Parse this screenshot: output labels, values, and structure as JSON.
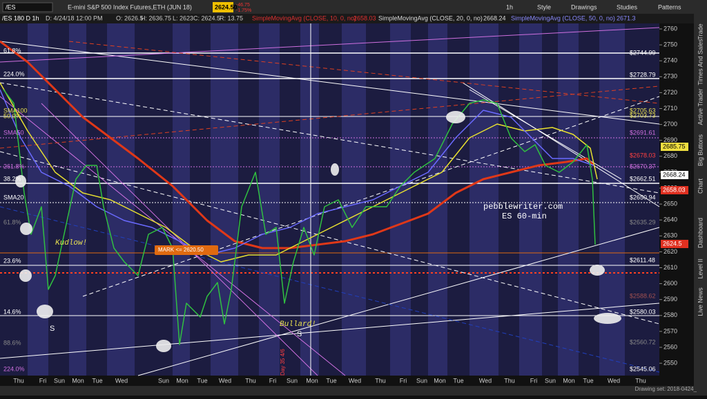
{
  "toolbar": {
    "symbol": "/ES",
    "description": "E-mini S&P 500 Index Futures,ETH (JUN 18)",
    "last": "2624.50",
    "change": "-46.75",
    "change_pct": "-1.75%",
    "buttons": [
      "1h",
      "Style",
      "Drawings",
      "Studies",
      "Patterns"
    ]
  },
  "info_bar": {
    "chart": "/ES 180 D 1h",
    "date": "D: 4/24/18 12:00 PM",
    "open": "O: 2626.5",
    "high": "H: 2636.75",
    "low": "L: 2623",
    "close": "C: 2624.5",
    "range": "R: 13.75",
    "studies": [
      {
        "name": "SimpleMovingAvg (CLOSE, 10, 0, no)",
        "value": "2658.03"
      },
      {
        "name": "SimpleMovingAvg (CLOSE, 20, 0, no)",
        "value": "2668.24"
      },
      {
        "name": "SimpleMovingAvg (CLOSE, 50, 0, no)",
        "value": "2671.3"
      }
    ]
  },
  "price_axis": {
    "ticks": [
      2760,
      2750,
      2740,
      2730,
      2720,
      2710,
      2700,
      2690,
      2680,
      2670,
      2660,
      2650,
      2640,
      2630,
      2620,
      2610,
      2600,
      2590,
      2580,
      2570,
      2560,
      2550
    ],
    "markers": [
      "2685.75",
      "2668.24",
      "2658.03",
      "2624.5"
    ]
  },
  "levels": [
    "$2744.99",
    "$2728.79",
    "$2705.63",
    "$2703.73",
    "$2691.61",
    "$2678.03",
    "$2670.37",
    "$2662.51",
    "$2650.94",
    "$2635.29",
    "$2611.48",
    "$2588.62",
    "$2580.03",
    "$2560.72",
    "$2545.06"
  ],
  "left_labels": [
    "61.8%",
    "224.0%",
    "SMA100",
    "50.0%",
    "SMA50",
    "261.8%",
    "38.2%",
    "SMA20",
    "61.8%",
    "23.6%",
    "14.6%",
    "88.6%",
    "224.0%"
  ],
  "annotations": {
    "kudlow": "Kudlow!",
    "bullard": "Bullard!",
    "s1": "S",
    "s2": "S",
    "site": "pebblewriter.com",
    "timeframe": "ES 60-min",
    "mark": "MARK <= 2620.50",
    "day": "Day 35 4/6"
  },
  "x_axis": [
    "Thu",
    "Fri",
    "Sun",
    "Mon",
    "Tue",
    "Wed",
    "Sun",
    "Mon",
    "Tue",
    "Wed",
    "Thu",
    "Fri",
    "Sun",
    "Mon",
    "Tue",
    "Wed",
    "Thu",
    "Fri",
    "Sun",
    "Mon",
    "Tue",
    "Wed",
    "Thu",
    "Fri",
    "Sun",
    "Mon",
    "Tue",
    "Wed",
    "Thu"
  ],
  "side_tabs": [
    "Trade",
    "Times And Sales",
    "Active Trader",
    "Big Buttons",
    "Chart",
    "Dashboard",
    "Level II",
    "Live News"
  ],
  "status": "Drawing set: 2018-0424_"
}
